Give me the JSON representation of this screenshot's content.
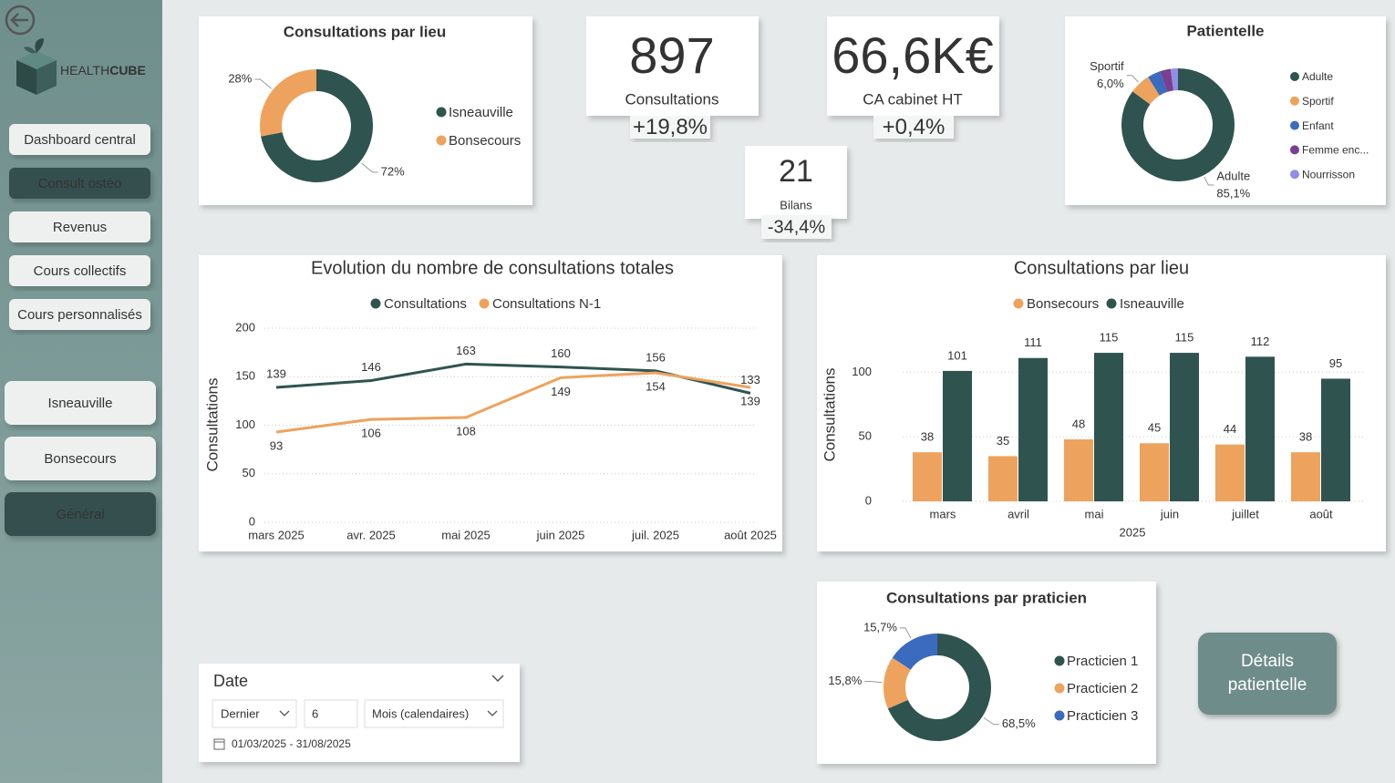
{
  "sidebar": {
    "brand": [
      "HEALTH",
      "CUBE"
    ],
    "nav": [
      "Dashboard central",
      "Consult ostéo",
      "Revenus",
      "Cours collectifs",
      "Cours personnalisés"
    ],
    "active_nav": 1,
    "sites": [
      "Isneauville",
      "Bonsecours",
      "Général"
    ],
    "active_site": 2
  },
  "kpis": [
    {
      "value": "897",
      "label": "Consultations",
      "change": "+19,8%"
    },
    {
      "value": "66,6K€",
      "label": "CA cabinet HT",
      "change": "+0,4%"
    },
    {
      "value": "21",
      "label": "Bilans",
      "change": "-34,4%"
    }
  ],
  "chart_data": [
    {
      "type": "donut",
      "title": "Consultations par lieu",
      "categories": [
        "Isneauville",
        "Bonsecours"
      ],
      "values": [
        72,
        28
      ],
      "value_labels": [
        "72%",
        "28%"
      ],
      "colors": [
        "#2f5450",
        "#eda35e"
      ]
    },
    {
      "type": "donut",
      "title": "Patientelle",
      "categories": [
        "Adulte",
        "Sportif",
        "Enfant",
        "Femme enc...",
        "Nourrisson"
      ],
      "values": [
        85.1,
        6.0,
        3.8,
        3.0,
        2.1
      ],
      "value_labels": [
        "85,1%",
        "6,0%",
        null,
        null,
        null
      ],
      "colors": [
        "#2f5450",
        "#eda35e",
        "#3a6bbf",
        "#7b3f8f",
        "#8f8fe8"
      ]
    },
    {
      "type": "line",
      "title": "Evolution du nombre de consultations totales",
      "ylabel": "Consultations",
      "categories": [
        "mars 2025",
        "avr. 2025",
        "mai 2025",
        "juin 2025",
        "juil. 2025",
        "août 2025"
      ],
      "series": [
        {
          "name": "Consultations",
          "color": "#2f5450",
          "values": [
            139,
            146,
            163,
            160,
            156,
            133
          ]
        },
        {
          "name": "Consultations N-1",
          "color": "#eda35e",
          "values": [
            93,
            106,
            108,
            149,
            154,
            139
          ]
        }
      ],
      "ylim": [
        0,
        200
      ],
      "yticks": [
        0,
        50,
        100,
        150,
        200
      ],
      "grid": true
    },
    {
      "type": "bar",
      "title": "Consultations par lieu",
      "ylabel": "Consultations",
      "xgroup_label": "2025",
      "categories": [
        "mars",
        "avril",
        "mai",
        "juin",
        "juillet",
        "août"
      ],
      "series": [
        {
          "name": "Bonsecours",
          "color": "#eda35e",
          "values": [
            38,
            35,
            48,
            45,
            44,
            38
          ]
        },
        {
          "name": "Isneauville",
          "color": "#2f5450",
          "values": [
            101,
            111,
            115,
            115,
            112,
            95
          ]
        }
      ],
      "ylim": [
        0,
        120
      ],
      "yticks": [
        0,
        50,
        100
      ],
      "grid": true
    },
    {
      "type": "donut",
      "title": "Consultations par praticien",
      "categories": [
        "Practicien 1",
        "Practicien 2",
        "Practicien 3"
      ],
      "values": [
        68.5,
        15.8,
        15.7
      ],
      "value_labels": [
        "68,5%",
        "15,8%",
        "15,7%"
      ],
      "colors": [
        "#2f5450",
        "#eda35e",
        "#3a6bbf"
      ]
    }
  ],
  "slicer": {
    "title": "Date",
    "mode": "Dernier",
    "count": "6",
    "unit": "Mois (calendaires)",
    "range": "01/03/2025 - 31/08/2025"
  },
  "button": "Détails patientelle"
}
